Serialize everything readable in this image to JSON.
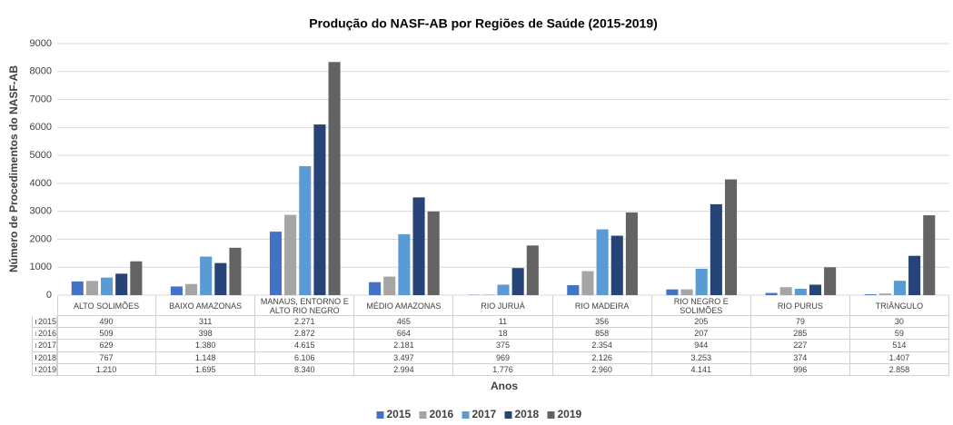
{
  "chart_data": {
    "type": "bar",
    "title": "Produção do NASF-AB  por Regiões de Saúde (2015-2019)",
    "y_label": "Número de Procedimentos do NASF-AB",
    "x_label": "Anos",
    "categories": [
      "ALTO SOLIMÕES",
      "BAIXO AMAZONAS",
      "MANAUS, ENTORNO E ALTO RIO NEGRO",
      "MÉDIO AMAZONAS",
      "RIO JURUÁ",
      "RIO MADEIRA",
      "RIO NEGRO E SOLIMÕES",
      "RIO PURUS",
      "TRIÂNGULO"
    ],
    "series": [
      {
        "name": "2015",
        "color": "#4472c4",
        "values": [
          490,
          311,
          2271,
          465,
          11,
          356,
          205,
          79,
          30
        ],
        "value_labels": [
          "490",
          "311",
          "2.271",
          "465",
          "11",
          "356",
          "205",
          "79",
          "30"
        ]
      },
      {
        "name": "2016",
        "color": "#a5a5a5",
        "values": [
          509,
          398,
          2872,
          664,
          18,
          858,
          207,
          285,
          59
        ],
        "value_labels": [
          "509",
          "398",
          "2.872",
          "664",
          "18",
          "858",
          "207",
          "285",
          "59"
        ]
      },
      {
        "name": "2017",
        "color": "#5b9bd5",
        "values": [
          629,
          1380,
          4615,
          2181,
          375,
          2354,
          944,
          227,
          514
        ],
        "value_labels": [
          "629",
          "1.380",
          "4.615",
          "2.181",
          "375",
          "2.354",
          "944",
          "227",
          "514"
        ]
      },
      {
        "name": "2018",
        "color": "#264478",
        "values": [
          767,
          1148,
          6106,
          3497,
          969,
          2126,
          3253,
          374,
          1407
        ],
        "value_labels": [
          "767",
          "1.148",
          "6.106",
          "3.497",
          "969",
          "2.126",
          "3.253",
          "374",
          "1.407"
        ]
      },
      {
        "name": "2019",
        "color": "#636363",
        "values": [
          1210,
          1695,
          8340,
          2994,
          1776,
          2960,
          4141,
          996,
          2858
        ],
        "value_labels": [
          "1.210",
          "1.695",
          "8.340",
          "2.994",
          "1.776",
          "2.960",
          "4.141",
          "996",
          "2.858"
        ]
      }
    ],
    "ylim": [
      0,
      9000
    ],
    "yticks": [
      0,
      1000,
      2000,
      3000,
      4000,
      5000,
      6000,
      7000,
      8000,
      9000
    ],
    "grid": true,
    "legend": "bottom"
  }
}
